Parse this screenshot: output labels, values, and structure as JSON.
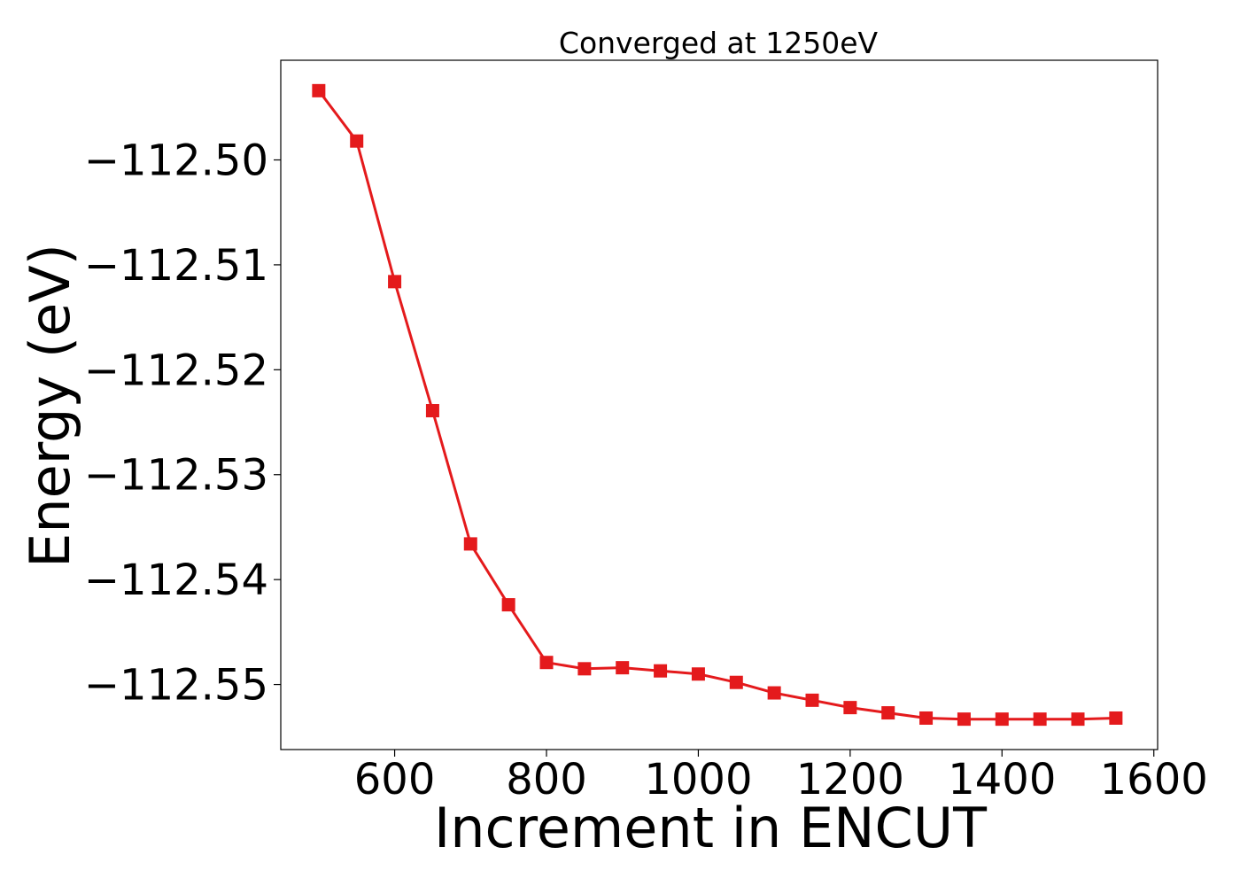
{
  "chart_data": {
    "type": "line",
    "title": "Converged at 1250eV",
    "xlabel": "Increment in ENCUT",
    "ylabel": "Energy (eV)",
    "xlim": [
      450,
      1605
    ],
    "ylim": [
      -112.5562,
      -112.4905
    ],
    "xticks": [
      600,
      800,
      1000,
      1200,
      1400,
      1600
    ],
    "yticks": [
      -112.5,
      -112.51,
      -112.52,
      -112.53,
      -112.54,
      -112.55
    ],
    "xtick_labels": [
      "600",
      "800",
      "1000",
      "1200",
      "1400",
      "1600"
    ],
    "ytick_labels": [
      "−112.50",
      "−112.51",
      "−112.52",
      "−112.53",
      "−112.54",
      "−112.55"
    ],
    "grid": false,
    "color": "#e41a1c",
    "marker": "square",
    "series": [
      {
        "x": [
          500,
          550,
          600,
          650,
          700,
          750,
          800,
          850,
          900,
          950,
          1000,
          1050,
          1100,
          1150,
          1200,
          1250,
          1300,
          1350,
          1400,
          1450,
          1500,
          1550
        ],
        "y": [
          -112.4934,
          -112.4982,
          -112.5116,
          -112.5239,
          -112.5366,
          -112.5424,
          -112.5479,
          -112.5485,
          -112.5484,
          -112.5487,
          -112.549,
          -112.5498,
          -112.5508,
          -112.5515,
          -112.5522,
          -112.5527,
          -112.5532,
          -112.5533,
          -112.5533,
          -112.5533,
          -112.5533,
          -112.5532
        ]
      }
    ]
  }
}
